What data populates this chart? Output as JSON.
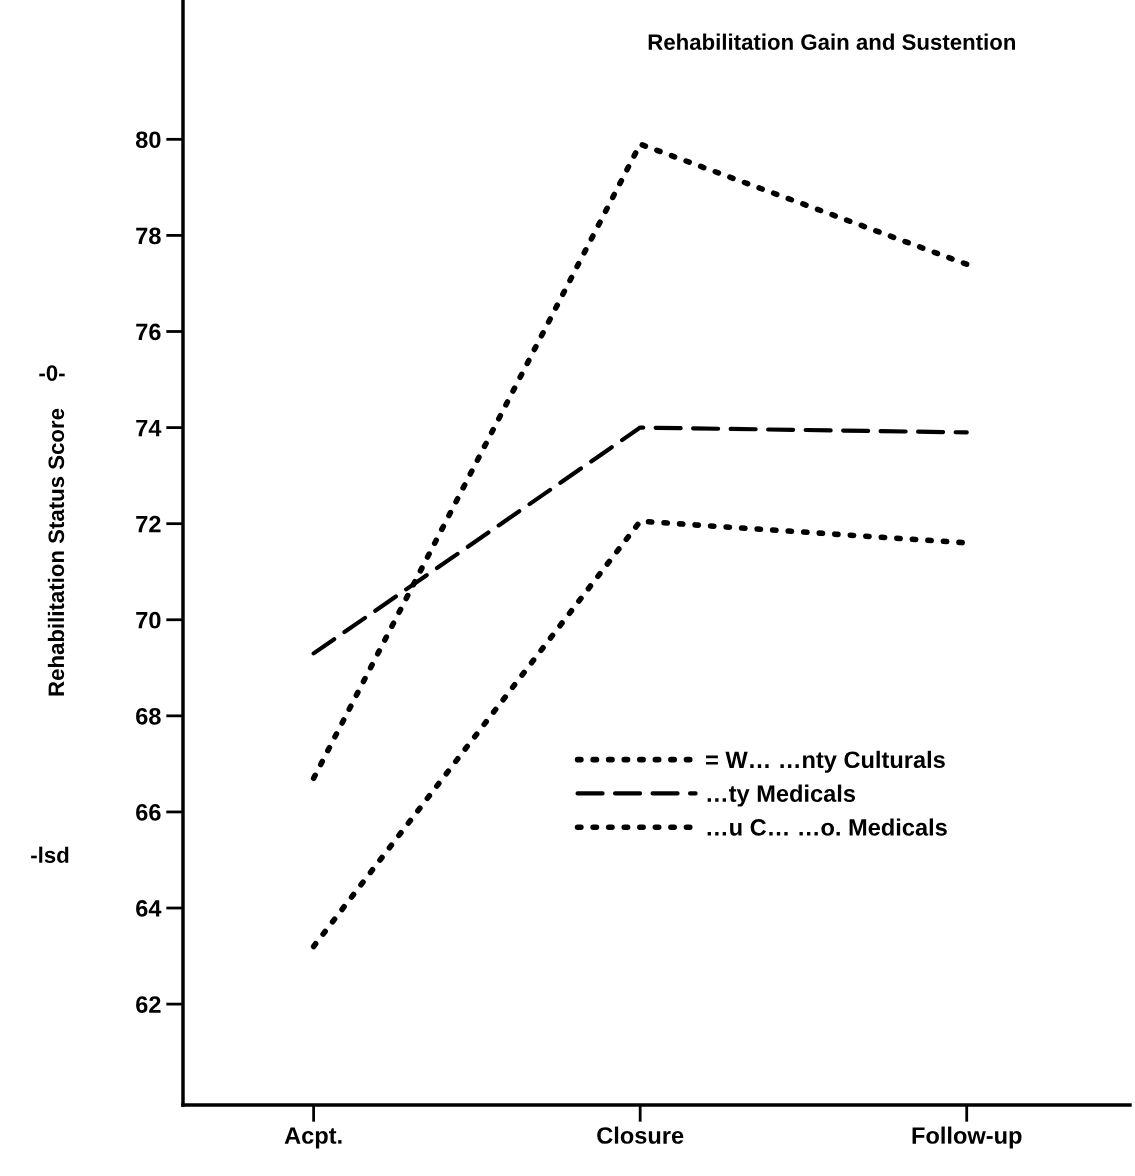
{
  "chart_data": {
    "type": "line",
    "title": "Rehabilitation Gain and Sustention",
    "ylabel": "Rehabilitation Status Score",
    "categories": [
      "Acpt.",
      "Closure",
      "Follow-up"
    ],
    "ylim": [
      59.9,
      82.9
    ],
    "yticks": [
      62,
      64,
      66,
      68,
      70,
      72,
      74,
      76,
      78,
      80
    ],
    "series": [
      {
        "name": "= W… …nty Culturals",
        "color": "#000000",
        "values": [
          66.7,
          79.9,
          77.4
        ],
        "line_style": "dotted",
        "marker": "none"
      },
      {
        "name": "…ty Medicals",
        "color": "#000000",
        "values": [
          69.3,
          74.0,
          73.9
        ],
        "line_style": "dashed",
        "marker": "none"
      },
      {
        "name": "…u C… …o. Medicals",
        "color": "#000000",
        "values": [
          63.2,
          72.05,
          71.6
        ],
        "line_style": "dotted",
        "marker": "none"
      }
    ],
    "annotations": [
      "-0-",
      "-lsd"
    ],
    "legend": "right",
    "grid": false
  }
}
